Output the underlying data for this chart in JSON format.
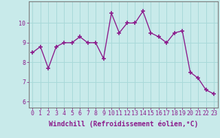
{
  "x": [
    0,
    1,
    2,
    3,
    4,
    5,
    6,
    7,
    8,
    9,
    10,
    11,
    12,
    13,
    14,
    15,
    16,
    17,
    18,
    19,
    20,
    21,
    22,
    23
  ],
  "y": [
    8.5,
    8.8,
    7.7,
    8.8,
    9.0,
    9.0,
    9.3,
    9.0,
    9.0,
    8.2,
    10.5,
    9.5,
    10.0,
    10.0,
    10.6,
    9.5,
    9.3,
    9.0,
    9.5,
    9.6,
    7.5,
    7.2,
    6.6,
    6.4
  ],
  "line_color": "#8b1a8b",
  "marker": "P",
  "marker_size": 3,
  "line_width": 1.0,
  "xlabel": "Windchill (Refroidissement éolien,°C)",
  "xlabel_fontsize": 7,
  "ylim": [
    5.7,
    11.1
  ],
  "xlim": [
    -0.5,
    23.5
  ],
  "yticks": [
    6,
    7,
    8,
    9,
    10
  ],
  "xticks": [
    0,
    1,
    2,
    3,
    4,
    5,
    6,
    7,
    8,
    9,
    10,
    11,
    12,
    13,
    14,
    15,
    16,
    17,
    18,
    19,
    20,
    21,
    22,
    23
  ],
  "tick_fontsize": 6,
  "bg_color": "#c8eaea",
  "grid_color": "#a8d8d8",
  "spine_color": "#7a7a7a",
  "xlabel_color": "#8b1a8b",
  "tick_color": "#8b1a8b"
}
